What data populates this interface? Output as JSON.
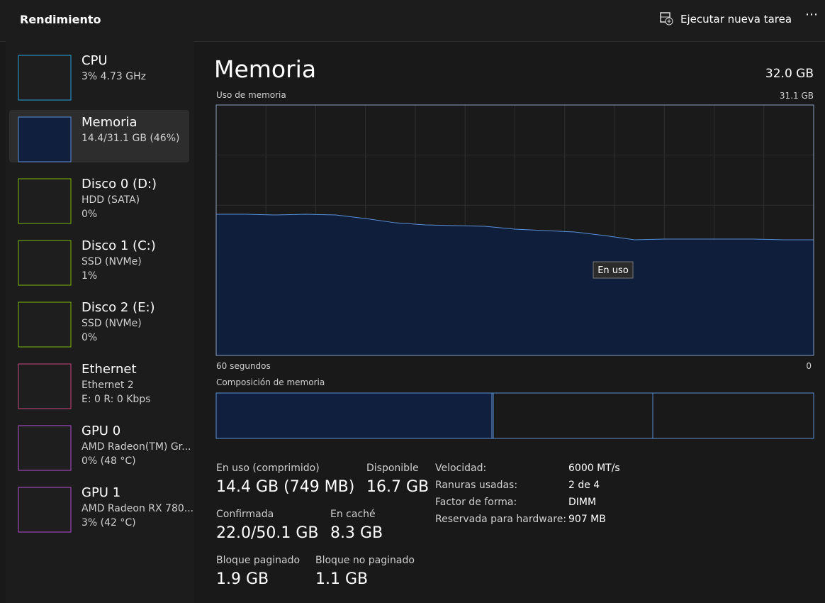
{
  "header": {
    "title": "Rendimiento",
    "action": "Ejecutar nueva tarea"
  },
  "sidebar": [
    {
      "name": "CPU",
      "lines": [
        "3%  4.73 GHz"
      ],
      "color": "#2aa0d8"
    },
    {
      "name": "Memoria",
      "lines": [
        "14.4/31.1 GB (46%)"
      ],
      "color": "#5b8fd6"
    },
    {
      "name": "Disco 0 (D:)",
      "lines": [
        "HDD (SATA)",
        "0%"
      ],
      "color": "#7db80b"
    },
    {
      "name": "Disco 1 (C:)",
      "lines": [
        "SSD (NVMe)",
        "1%"
      ],
      "color": "#7db80b"
    },
    {
      "name": "Disco 2 (E:)",
      "lines": [
        "SSD (NVMe)",
        "0%"
      ],
      "color": "#7db80b"
    },
    {
      "name": "Ethernet",
      "lines": [
        "Ethernet 2",
        "E: 0 R: 0 Kbps"
      ],
      "color": "#c7467c"
    },
    {
      "name": "GPU 0",
      "lines": [
        "AMD Radeon(TM) Gr...",
        "0%  (48 °C)"
      ],
      "color": "#b04fcf"
    },
    {
      "name": "GPU 1",
      "lines": [
        "AMD Radeon RX 780...",
        "3%  (42 °C)"
      ],
      "color": "#b04fcf"
    }
  ],
  "detail": {
    "title": "Memoria",
    "total": "32.0 GB",
    "chart_data": {
      "type": "area",
      "title": "Uso de memoria",
      "color": "#5b8fd6",
      "x": [
        60,
        57,
        54,
        51,
        48,
        45,
        42,
        39,
        36,
        33,
        30,
        27,
        24,
        21,
        18,
        15,
        12,
        9,
        6,
        3,
        0
      ],
      "values": [
        17.53,
        17.53,
        17.44,
        17.53,
        17.44,
        17.0,
        16.47,
        16.21,
        16.12,
        16.03,
        15.68,
        15.51,
        15.33,
        14.89,
        14.36,
        14.45,
        14.45,
        14.45,
        14.45,
        14.36,
        14.36
      ],
      "xlim": [
        60,
        0
      ],
      "ylim": [
        0,
        31.1
      ],
      "xticks": [
        {
          "value": 60,
          "label": "60 segundos"
        },
        0
      ],
      "yticks": [
        {
          "value": 31.1,
          "label": "31.1 GB"
        }
      ],
      "annotation": "En uso"
    },
    "composition_label": "Composición de memoria",
    "stats": [
      {
        "label": "En uso (comprimido)",
        "value": "14.4 GB (749 MB)"
      },
      {
        "label": "Disponible",
        "value": "16.7 GB"
      },
      {
        "label": "Confirmada",
        "value": "22.0/50.1 GB"
      },
      {
        "label": "En caché",
        "value": "8.3 GB"
      },
      {
        "label": "Bloque paginado",
        "value": "1.9 GB"
      },
      {
        "label": "Bloque no paginado",
        "value": "1.1 GB"
      }
    ],
    "properties": [
      {
        "label": "Velocidad:",
        "value": "6000 MT/s"
      },
      {
        "label": "Ranuras usadas:",
        "value": "2 de 4"
      },
      {
        "label": "Factor de forma:",
        "value": "DIMM"
      },
      {
        "label": "Reservada para hardware:",
        "value": "907 MB"
      }
    ]
  }
}
